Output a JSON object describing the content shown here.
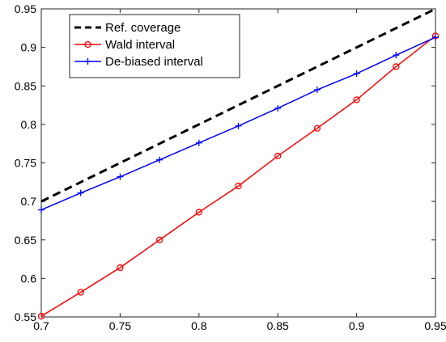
{
  "chart_data": {
    "type": "line",
    "title": "",
    "xlabel": "",
    "ylabel": "",
    "xlim": [
      0.7,
      0.95
    ],
    "ylim": [
      0.55,
      0.95
    ],
    "x_ticks": [
      0.7,
      0.75,
      0.8,
      0.85,
      0.9,
      0.95
    ],
    "x_tick_labels": [
      "0.7",
      "0.75",
      "0.8",
      "0.85",
      "0.9",
      "0.95"
    ],
    "y_ticks": [
      0.55,
      0.6,
      0.65,
      0.7,
      0.75,
      0.8,
      0.85,
      0.9,
      0.95
    ],
    "y_tick_labels": [
      "0.55",
      "0.6",
      "0.65",
      "0.7",
      "0.75",
      "0.8",
      "0.85",
      "0.9",
      "0.95"
    ],
    "grid": false,
    "legend_position": "top-left",
    "x": [
      0.7,
      0.725,
      0.75,
      0.775,
      0.8,
      0.825,
      0.85,
      0.875,
      0.9,
      0.925,
      0.95
    ],
    "series": [
      {
        "name": "Ref. coverage",
        "color": "#000000",
        "style": "dashed",
        "marker": "none",
        "values": [
          0.7,
          0.725,
          0.75,
          0.775,
          0.8,
          0.825,
          0.85,
          0.875,
          0.9,
          0.925,
          0.95
        ]
      },
      {
        "name": "Wald interval",
        "color": "#ff0000",
        "style": "solid",
        "marker": "circle",
        "values": [
          0.551,
          0.582,
          0.614,
          0.65,
          0.686,
          0.72,
          0.759,
          0.795,
          0.832,
          0.875,
          0.915
        ]
      },
      {
        "name": "De-biased interval",
        "color": "#0000ff",
        "style": "solid",
        "marker": "plus",
        "values": [
          0.689,
          0.711,
          0.732,
          0.754,
          0.776,
          0.798,
          0.821,
          0.845,
          0.866,
          0.89,
          0.913
        ]
      }
    ]
  }
}
